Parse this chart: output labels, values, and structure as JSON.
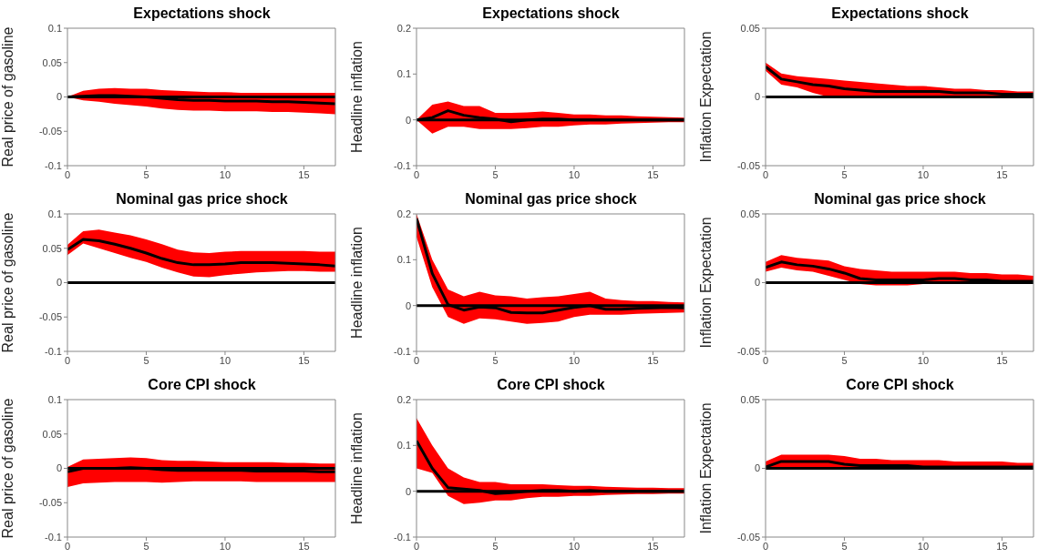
{
  "chart_data": [
    {
      "type": "line",
      "title": "Expectations shock",
      "ylabel": "Real price of gasoline",
      "x": [
        0,
        1,
        2,
        3,
        4,
        5,
        6,
        7,
        8,
        9,
        10,
        11,
        12,
        13,
        14,
        15,
        16,
        17
      ],
      "xlim": [
        0,
        17
      ],
      "xticks": [
        0,
        5,
        10,
        15
      ],
      "ylim": [
        -0.1,
        0.1
      ],
      "yticks": [
        -0.1,
        -0.05,
        0,
        0.05,
        0.1
      ],
      "ref_lines": [
        {
          "axis": "y",
          "value": 0,
          "color": "#000000"
        }
      ],
      "colors": [
        "#ff0000"
      ],
      "series": [
        {
          "color": "#000000",
          "values": [
            0,
            0.001,
            0.002,
            0.002,
            0.001,
            0,
            -0.002,
            -0.004,
            -0.005,
            -0.005,
            -0.006,
            -0.006,
            -0.006,
            -0.007,
            -0.007,
            -0.008,
            -0.009,
            -0.01
          ],
          "lower": [
            0,
            -0.005,
            -0.007,
            -0.01,
            -0.012,
            -0.014,
            -0.017,
            -0.019,
            -0.02,
            -0.02,
            -0.021,
            -0.021,
            -0.021,
            -0.022,
            -0.022,
            -0.023,
            -0.024,
            -0.025
          ],
          "upper": [
            0,
            0.009,
            0.012,
            0.013,
            0.012,
            0.012,
            0.01,
            0.009,
            0.008,
            0.007,
            0.007,
            0.006,
            0.006,
            0.006,
            0.006,
            0.006,
            0.006,
            0.006
          ]
        }
      ]
    },
    {
      "type": "line",
      "title": "Expectations shock",
      "ylabel": "Headline inflation",
      "x": [
        0,
        1,
        2,
        3,
        4,
        5,
        6,
        7,
        8,
        9,
        10,
        11,
        12,
        13,
        14,
        15,
        16,
        17
      ],
      "xlim": [
        0,
        17
      ],
      "xticks": [
        0,
        5,
        10,
        15
      ],
      "ylim": [
        -0.1,
        0.2
      ],
      "yticks": [
        -0.1,
        0,
        0.1,
        0.2
      ],
      "ref_lines": [
        {
          "axis": "y",
          "value": 0,
          "color": "#000000"
        }
      ],
      "colors": [
        "#ff0000"
      ],
      "series": [
        {
          "color": "#000000",
          "values": [
            0,
            0.005,
            0.02,
            0.01,
            0.005,
            0.002,
            -0.004,
            0,
            0.002,
            0.002,
            0,
            0,
            0,
            0,
            0,
            0,
            0,
            0
          ],
          "lower": [
            0,
            -0.03,
            -0.015,
            -0.015,
            -0.02,
            -0.02,
            -0.02,
            -0.018,
            -0.015,
            -0.015,
            -0.012,
            -0.01,
            -0.01,
            -0.008,
            -0.007,
            -0.006,
            -0.005,
            -0.005
          ],
          "upper": [
            0,
            0.033,
            0.04,
            0.03,
            0.03,
            0.015,
            0.015,
            0.016,
            0.018,
            0.015,
            0.012,
            0.012,
            0.01,
            0.01,
            0.008,
            0.007,
            0.006,
            0.005
          ]
        }
      ]
    },
    {
      "type": "line",
      "title": "Expectations shock",
      "ylabel": "Inflation Expectation",
      "x": [
        0,
        1,
        2,
        3,
        4,
        5,
        6,
        7,
        8,
        9,
        10,
        11,
        12,
        13,
        14,
        15,
        16,
        17
      ],
      "xlim": [
        0,
        17
      ],
      "xticks": [
        0,
        5,
        10,
        15
      ],
      "ylim": [
        -0.05,
        0.05
      ],
      "yticks": [
        -0.05,
        0,
        0.05
      ],
      "ref_lines": [
        {
          "axis": "y",
          "value": 0,
          "color": "#000000"
        }
      ],
      "colors": [
        "#ff0000"
      ],
      "series": [
        {
          "color": "#000000",
          "values": [
            0.022,
            0.013,
            0.011,
            0.009,
            0.008,
            0.006,
            0.005,
            0.004,
            0.004,
            0.004,
            0.004,
            0.004,
            0.003,
            0.003,
            0.003,
            0.002,
            0.002,
            0.002
          ],
          "lower": [
            0.019,
            0.009,
            0.007,
            0.003,
            0,
            0,
            0,
            0,
            0,
            -0.001,
            -0.001,
            -0.001,
            0,
            0,
            0,
            0,
            0,
            0
          ],
          "upper": [
            0.025,
            0.017,
            0.015,
            0.014,
            0.013,
            0.012,
            0.011,
            0.01,
            0.009,
            0.008,
            0.008,
            0.007,
            0.006,
            0.006,
            0.005,
            0.005,
            0.004,
            0.004
          ]
        }
      ]
    },
    {
      "type": "line",
      "title": "Nominal gas price shock",
      "ylabel": "Real price of gasoline",
      "x": [
        0,
        1,
        2,
        3,
        4,
        5,
        6,
        7,
        8,
        9,
        10,
        11,
        12,
        13,
        14,
        15,
        16,
        17
      ],
      "xlim": [
        0,
        17
      ],
      "xticks": [
        0,
        5,
        10,
        15
      ],
      "ylim": [
        -0.1,
        0.1
      ],
      "yticks": [
        -0.1,
        -0.05,
        0,
        0.05,
        0.1
      ],
      "ref_lines": [
        {
          "axis": "y",
          "value": 0,
          "color": "#000000"
        }
      ],
      "colors": [
        "#ff0000"
      ],
      "series": [
        {
          "color": "#000000",
          "values": [
            0.048,
            0.063,
            0.061,
            0.056,
            0.05,
            0.043,
            0.035,
            0.029,
            0.026,
            0.026,
            0.027,
            0.029,
            0.029,
            0.029,
            0.028,
            0.027,
            0.026,
            0.024
          ],
          "lower": [
            0.04,
            0.057,
            0.05,
            0.043,
            0.036,
            0.03,
            0.022,
            0.015,
            0.009,
            0.008,
            0.011,
            0.013,
            0.015,
            0.016,
            0.017,
            0.017,
            0.016,
            0.016
          ],
          "upper": [
            0.055,
            0.075,
            0.077,
            0.073,
            0.069,
            0.063,
            0.056,
            0.048,
            0.044,
            0.043,
            0.045,
            0.046,
            0.046,
            0.046,
            0.046,
            0.046,
            0.045,
            0.045
          ]
        }
      ]
    },
    {
      "type": "line",
      "title": "Nominal gas price shock",
      "ylabel": "Headline inflation",
      "x": [
        0,
        1,
        2,
        3,
        4,
        5,
        6,
        7,
        8,
        9,
        10,
        11,
        12,
        13,
        14,
        15,
        16,
        17
      ],
      "xlim": [
        0,
        17
      ],
      "xticks": [
        0,
        5,
        10,
        15
      ],
      "ylim": [
        -0.1,
        0.2
      ],
      "yticks": [
        -0.1,
        0,
        0.1,
        0.2
      ],
      "ref_lines": [
        {
          "axis": "y",
          "value": 0,
          "color": "#000000"
        }
      ],
      "colors": [
        "#ff0000"
      ],
      "series": [
        {
          "color": "#000000",
          "values": [
            0.19,
            0.07,
            0.002,
            -0.01,
            -0.003,
            -0.005,
            -0.015,
            -0.016,
            -0.016,
            -0.01,
            -0.004,
            0,
            -0.008,
            -0.008,
            -0.006,
            -0.005,
            -0.004,
            -0.005
          ],
          "lower": [
            0.15,
            0.04,
            -0.025,
            -0.04,
            -0.028,
            -0.03,
            -0.035,
            -0.04,
            -0.038,
            -0.035,
            -0.025,
            -0.02,
            -0.02,
            -0.02,
            -0.018,
            -0.017,
            -0.016,
            -0.015
          ],
          "upper": [
            0.2,
            0.1,
            0.035,
            0.02,
            0.03,
            0.022,
            0.02,
            0.015,
            0.018,
            0.02,
            0.025,
            0.03,
            0.015,
            0.012,
            0.01,
            0.01,
            0.008,
            0.007
          ]
        }
      ]
    },
    {
      "type": "line",
      "title": "Nominal gas price shock",
      "ylabel": "Inflation Expectation",
      "x": [
        0,
        1,
        2,
        3,
        4,
        5,
        6,
        7,
        8,
        9,
        10,
        11,
        12,
        13,
        14,
        15,
        16,
        17
      ],
      "xlim": [
        0,
        17
      ],
      "xticks": [
        0,
        5,
        10,
        15
      ],
      "ylim": [
        -0.05,
        0.05
      ],
      "yticks": [
        -0.05,
        0,
        0.05
      ],
      "ref_lines": [
        {
          "axis": "y",
          "value": 0,
          "color": "#000000"
        }
      ],
      "colors": [
        "#ff0000"
      ],
      "series": [
        {
          "color": "#000000",
          "values": [
            0.011,
            0.015,
            0.013,
            0.012,
            0.01,
            0.007,
            0.003,
            0.002,
            0.002,
            0.002,
            0.002,
            0.003,
            0.003,
            0.002,
            0.002,
            0.001,
            0.001,
            0.001
          ],
          "lower": [
            0.008,
            0.011,
            0.009,
            0.008,
            0.005,
            0.002,
            -0.001,
            -0.002,
            -0.002,
            -0.002,
            -0.001,
            -0.001,
            -0.001,
            -0.001,
            -0.001,
            -0.001,
            -0.001,
            -0.001
          ],
          "upper": [
            0.015,
            0.02,
            0.018,
            0.017,
            0.016,
            0.012,
            0.01,
            0.009,
            0.008,
            0.008,
            0.008,
            0.008,
            0.008,
            0.007,
            0.007,
            0.006,
            0.006,
            0.005
          ]
        }
      ]
    },
    {
      "type": "line",
      "title": "Core CPI shock",
      "ylabel": "Real price of gasoline",
      "x": [
        0,
        1,
        2,
        3,
        4,
        5,
        6,
        7,
        8,
        9,
        10,
        11,
        12,
        13,
        14,
        15,
        16,
        17
      ],
      "xlim": [
        0,
        17
      ],
      "xticks": [
        0,
        5,
        10,
        15
      ],
      "ylim": [
        -0.1,
        0.1
      ],
      "yticks": [
        -0.1,
        -0.05,
        0,
        0.05,
        0.1
      ],
      "ref_lines": [
        {
          "axis": "y",
          "value": 0,
          "color": "#000000"
        }
      ],
      "colors": [
        "#ff0000"
      ],
      "series": [
        {
          "color": "#000000",
          "values": [
            -0.005,
            0,
            0,
            0,
            0.001,
            0,
            -0.002,
            -0.003,
            -0.003,
            -0.003,
            -0.003,
            -0.003,
            -0.004,
            -0.004,
            -0.004,
            -0.004,
            -0.005,
            -0.005
          ],
          "lower": [
            -0.027,
            -0.022,
            -0.021,
            -0.02,
            -0.02,
            -0.02,
            -0.021,
            -0.02,
            -0.019,
            -0.019,
            -0.019,
            -0.019,
            -0.02,
            -0.02,
            -0.02,
            -0.02,
            -0.02,
            -0.02
          ],
          "upper": [
            0.002,
            0.013,
            0.014,
            0.015,
            0.016,
            0.015,
            0.012,
            0.011,
            0.011,
            0.01,
            0.009,
            0.009,
            0.009,
            0.009,
            0.008,
            0.008,
            0.007,
            0.007
          ]
        }
      ]
    },
    {
      "type": "line",
      "title": "Core CPI shock",
      "ylabel": "Headline inflation",
      "x": [
        0,
        1,
        2,
        3,
        4,
        5,
        6,
        7,
        8,
        9,
        10,
        11,
        12,
        13,
        14,
        15,
        16,
        17
      ],
      "xlim": [
        0,
        17
      ],
      "xticks": [
        0,
        5,
        10,
        15
      ],
      "ylim": [
        -0.1,
        0.2
      ],
      "yticks": [
        -0.1,
        0,
        0.1,
        0.2
      ],
      "ref_lines": [
        {
          "axis": "y",
          "value": 0,
          "color": "#000000"
        }
      ],
      "colors": [
        "#ff0000"
      ],
      "series": [
        {
          "color": "#000000",
          "values": [
            0.11,
            0.05,
            0.008,
            0.005,
            0.002,
            -0.005,
            -0.003,
            0,
            0.002,
            0.002,
            0,
            0.002,
            0,
            0,
            0,
            0,
            0,
            0
          ],
          "lower": [
            0.05,
            0.04,
            -0.01,
            -0.028,
            -0.025,
            -0.02,
            -0.02,
            -0.015,
            -0.012,
            -0.012,
            -0.01,
            -0.01,
            -0.008,
            -0.007,
            -0.006,
            -0.006,
            -0.005,
            -0.005
          ],
          "upper": [
            0.16,
            0.1,
            0.05,
            0.03,
            0.02,
            0.02,
            0.015,
            0.015,
            0.015,
            0.013,
            0.012,
            0.012,
            0.01,
            0.009,
            0.008,
            0.008,
            0.007,
            0.007
          ]
        }
      ]
    },
    {
      "type": "line",
      "title": "Core CPI shock",
      "ylabel": "Inflation Expectation",
      "x": [
        0,
        1,
        2,
        3,
        4,
        5,
        6,
        7,
        8,
        9,
        10,
        11,
        12,
        13,
        14,
        15,
        16,
        17
      ],
      "xlim": [
        0,
        17
      ],
      "xticks": [
        0,
        5,
        10,
        15
      ],
      "ylim": [
        -0.05,
        0.05
      ],
      "yticks": [
        -0.05,
        0,
        0.05
      ],
      "ref_lines": [
        {
          "axis": "y",
          "value": 0,
          "color": "#000000"
        }
      ],
      "colors": [
        "#ff0000"
      ],
      "series": [
        {
          "color": "#000000",
          "values": [
            0.001,
            0.005,
            0.005,
            0.005,
            0.005,
            0.003,
            0.002,
            0.002,
            0.002,
            0.002,
            0.001,
            0.001,
            0.001,
            0.001,
            0.001,
            0.001,
            0.001,
            0.001
          ],
          "lower": [
            -0.001,
            0.001,
            0.001,
            0.001,
            0.001,
            0,
            -0.001,
            -0.001,
            -0.001,
            -0.001,
            -0.001,
            -0.001,
            -0.001,
            -0.001,
            0,
            0,
            0,
            0
          ],
          "upper": [
            0.005,
            0.01,
            0.01,
            0.01,
            0.01,
            0.009,
            0.007,
            0.007,
            0.006,
            0.006,
            0.006,
            0.006,
            0.005,
            0.005,
            0.005,
            0.005,
            0.004,
            0.004
          ]
        }
      ]
    }
  ]
}
